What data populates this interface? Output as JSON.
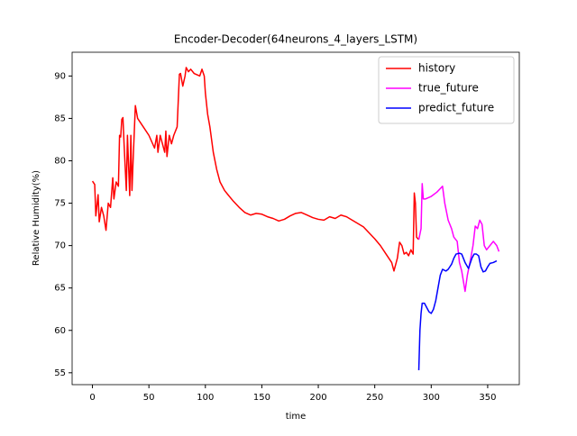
{
  "chart_data": {
    "type": "line",
    "title": "Encoder-Decoder(64neurons_4_layers_LSTM)",
    "x_label": "time",
    "y_label": "Relative Humidity(%)",
    "xlim": [
      -18,
      378
    ],
    "ylim": [
      53.6,
      92.8
    ],
    "xticks": [
      0,
      50,
      100,
      150,
      200,
      250,
      300,
      350
    ],
    "yticks": [
      55,
      60,
      65,
      70,
      75,
      80,
      85,
      90
    ],
    "legend": "upper right",
    "series": [
      {
        "name": "history",
        "color": "#ff0000",
        "x": [
          0,
          2,
          3,
          5,
          6,
          8,
          10,
          12,
          14,
          16,
          18,
          19,
          21,
          23,
          24,
          25,
          26,
          27,
          28,
          30,
          31,
          33,
          34,
          35,
          36,
          38,
          40,
          45,
          50,
          55,
          57,
          58,
          60,
          62,
          64,
          65,
          66,
          68,
          70,
          72,
          75,
          77,
          78,
          80,
          82,
          83,
          85,
          87,
          90,
          95,
          97,
          99,
          100,
          102,
          104,
          107,
          110,
          113,
          117,
          120,
          125,
          130,
          135,
          140,
          145,
          150,
          155,
          160,
          165,
          170,
          175,
          180,
          185,
          190,
          195,
          200,
          205,
          210,
          215,
          220,
          225,
          230,
          235,
          240,
          245,
          250,
          255,
          260,
          265,
          267,
          270,
          272,
          274,
          276,
          278,
          280,
          282,
          284,
          285,
          286,
          287,
          289
        ],
        "values": [
          77.6,
          77.2,
          73.5,
          76,
          72.8,
          74.5,
          73.5,
          71.8,
          75,
          74.5,
          78,
          75.5,
          77.5,
          77,
          83,
          82.8,
          84.9,
          85.1,
          82,
          76.5,
          83,
          75.9,
          83,
          76.5,
          80,
          86.5,
          85,
          84,
          83,
          81.5,
          83,
          81,
          83,
          82,
          81,
          83.5,
          80.5,
          83,
          82,
          83,
          84,
          90.2,
          90.3,
          88.8,
          90,
          91,
          90.5,
          90.8,
          90.3,
          90,
          90.8,
          90,
          88,
          85.5,
          84,
          81,
          79,
          77.5,
          76.5,
          76,
          75.2,
          74.5,
          73.9,
          73.6,
          73.8,
          73.7,
          73.4,
          73.2,
          72.9,
          73.1,
          73.5,
          73.8,
          73.9,
          73.6,
          73.3,
          73.1,
          73,
          73.4,
          73.2,
          73.6,
          73.4,
          73,
          72.6,
          72.2,
          71.5,
          70.8,
          70,
          69,
          68,
          67,
          68.5,
          70.4,
          70,
          69,
          69.2,
          68.8,
          69.5,
          69,
          76.2,
          75,
          71,
          70.7
        ]
      },
      {
        "name": "true_future",
        "color": "#ff00ff",
        "x": [
          289,
          291,
          292,
          293,
          295,
          300,
          305,
          310,
          312,
          315,
          318,
          320,
          323,
          325,
          327,
          330,
          332,
          335,
          337,
          339,
          341,
          343,
          345,
          347,
          349,
          352,
          355,
          358,
          360
        ],
        "values": [
          70.7,
          72,
          77.3,
          75.5,
          75.5,
          75.8,
          76.3,
          77,
          75,
          73,
          72,
          71,
          70.5,
          68,
          67,
          64.6,
          66.5,
          68.5,
          70,
          72.3,
          72,
          73,
          72.5,
          70,
          69.5,
          70,
          70.5,
          70,
          69.3
        ]
      },
      {
        "name": "predict_future",
        "color": "#0000ff",
        "x": [
          289,
          290,
          291,
          292,
          294,
          296,
          298,
          300,
          302,
          304,
          306,
          308,
          310,
          313,
          315,
          318,
          320,
          322,
          325,
          327,
          330,
          333,
          336,
          338,
          340,
          342,
          344,
          346,
          348,
          350,
          352,
          355,
          358
        ],
        "values": [
          55.3,
          60,
          62,
          63.2,
          63.2,
          62.7,
          62.2,
          62,
          62.5,
          63.5,
          65,
          66.5,
          67.2,
          67,
          67.2,
          67.8,
          68.5,
          69,
          69.1,
          69,
          68,
          67.3,
          68.5,
          69,
          69,
          68.8,
          67.5,
          66.9,
          67,
          67.5,
          67.9,
          68,
          68.2
        ]
      }
    ]
  }
}
